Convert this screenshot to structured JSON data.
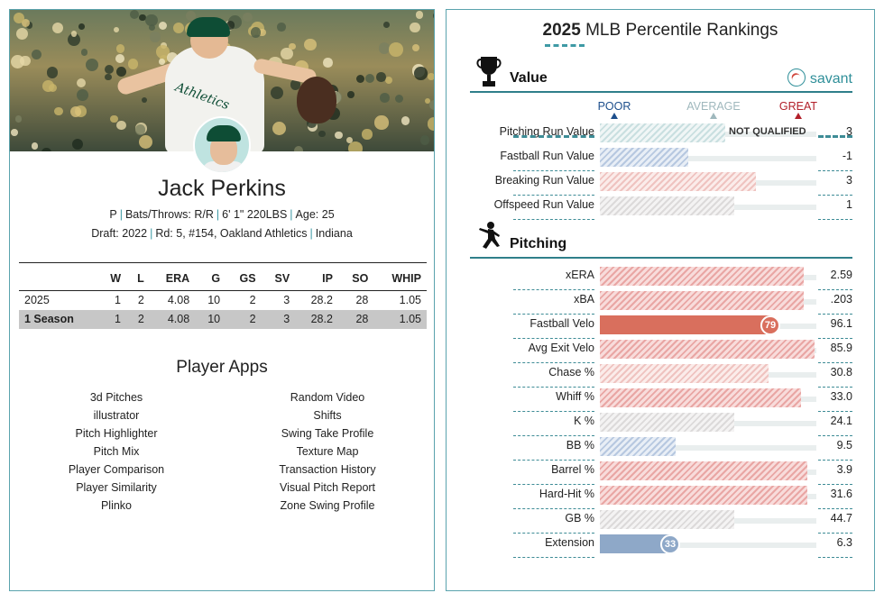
{
  "player": {
    "name": "Jack Perkins",
    "position": "P",
    "bats_throws_label": "Bats/Throws:",
    "bats_throws": "R/R",
    "height_weight": "6' 1\" 220LBS",
    "age_label": "Age:",
    "age": "25",
    "draft_label": "Draft:",
    "draft_year": "2022",
    "draft_pick": "Rd: 5, #154,",
    "draft_team": "Oakland Athletics",
    "school": "Indiana",
    "jersey_text": "Athletics"
  },
  "stats": {
    "headers": [
      "",
      "W",
      "L",
      "ERA",
      "G",
      "GS",
      "SV",
      "IP",
      "SO",
      "WHIP"
    ],
    "rows": [
      [
        "2025",
        "1",
        "2",
        "4.08",
        "10",
        "2",
        "3",
        "28.2",
        "28",
        "1.05"
      ]
    ],
    "total": [
      "1 Season",
      "1",
      "2",
      "4.08",
      "10",
      "2",
      "3",
      "28.2",
      "28",
      "1.05"
    ]
  },
  "apps": {
    "title": "Player Apps",
    "left": [
      "3d Pitches",
      "illustrator",
      "Pitch Highlighter",
      "Pitch Mix",
      "Player Comparison",
      "Player Similarity",
      "Plinko"
    ],
    "right": [
      "Random Video",
      "Shifts",
      "Swing Take Profile",
      "Texture Map",
      "Transaction History",
      "Visual Pitch Report",
      "Zone Swing Profile"
    ]
  },
  "rankings": {
    "title_year": "2025",
    "title_text": "MLB Percentile Rankings",
    "brand": "savant",
    "scale": {
      "poor": "POOR",
      "average": "AVERAGE",
      "great": "GREAT"
    },
    "scale_colors": {
      "poor": "#1d4f8c",
      "average": "#9fb8bd",
      "great": "#b2202a"
    },
    "value_section": {
      "title": "Value",
      "icon": "trophy-icon",
      "rows": [
        {
          "label": "Pitching Run Value",
          "value": "3",
          "percentile": 58,
          "style": "teal",
          "note": "NOT QUALIFIED",
          "qualified": false
        },
        {
          "label": "Fastball Run Value",
          "value": "-1",
          "percentile": 41,
          "style": "blue"
        },
        {
          "label": "Breaking Run Value",
          "value": "3",
          "percentile": 72,
          "style": "pink"
        },
        {
          "label": "Offspeed Run Value",
          "value": "1",
          "percentile": 62,
          "style": "grey"
        }
      ]
    },
    "pitching_section": {
      "title": "Pitching",
      "icon": "pitcher-silhouette-icon",
      "rows": [
        {
          "label": "xERA",
          "value": "2.59",
          "percentile": 94,
          "style": "red"
        },
        {
          "label": "xBA",
          "value": ".203",
          "percentile": 94,
          "style": "red"
        },
        {
          "label": "Fastball Velo",
          "value": "96.1",
          "percentile": 79,
          "style": "solid-red",
          "bubble": "79"
        },
        {
          "label": "Avg Exit Velo",
          "value": "85.9",
          "percentile": 99,
          "style": "red"
        },
        {
          "label": "Chase %",
          "value": "30.8",
          "percentile": 78,
          "style": "pink"
        },
        {
          "label": "Whiff %",
          "value": "33.0",
          "percentile": 93,
          "style": "red"
        },
        {
          "label": "K %",
          "value": "24.1",
          "percentile": 62,
          "style": "grey"
        },
        {
          "label": "BB %",
          "value": "9.5",
          "percentile": 35,
          "style": "blue"
        },
        {
          "label": "Barrel %",
          "value": "3.9",
          "percentile": 96,
          "style": "red"
        },
        {
          "label": "Hard-Hit %",
          "value": "31.6",
          "percentile": 96,
          "style": "red"
        },
        {
          "label": "GB %",
          "value": "44.7",
          "percentile": 62,
          "style": "grey"
        },
        {
          "label": "Extension",
          "value": "6.3",
          "percentile": 33,
          "style": "solid-blue",
          "bubble": "33"
        }
      ]
    }
  }
}
